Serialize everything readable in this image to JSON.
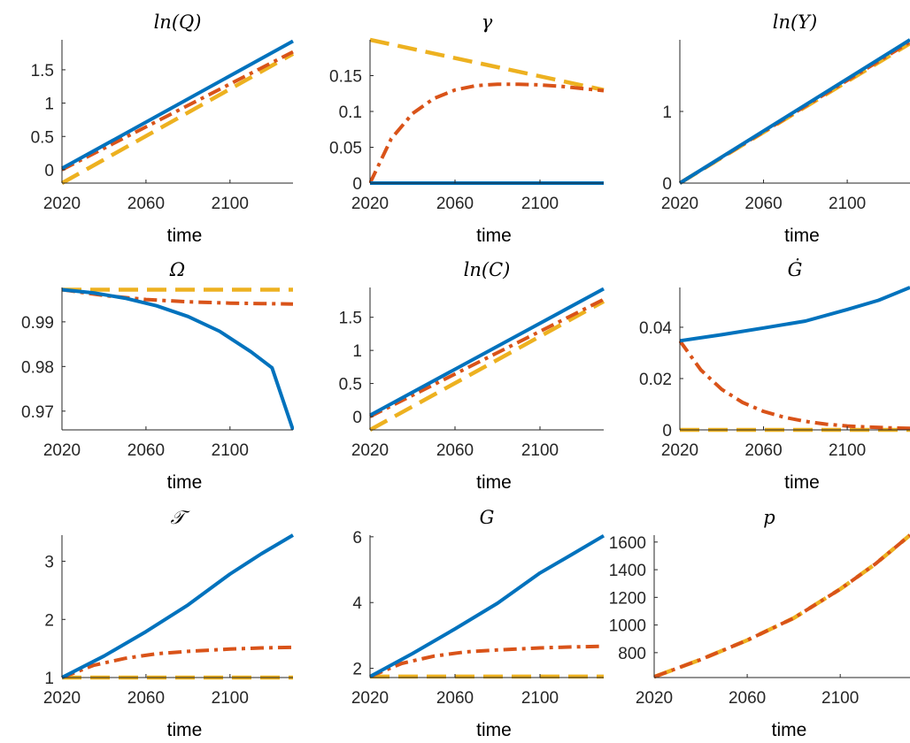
{
  "colors": {
    "blue": "#0072BD",
    "orange": "#D95319",
    "yellow": "#EDB120",
    "axis": "#262626"
  },
  "chart_data": [
    {
      "type": "line",
      "title": "ln(Q)",
      "xlabel": "time",
      "ylabel": "",
      "xlim": [
        2020,
        2130
      ],
      "ylim": [
        -0.2,
        1.95
      ],
      "xticks": [
        "2020",
        "2060",
        "2100"
      ],
      "yticks": [
        "0",
        "0.5",
        "1",
        "1.5"
      ],
      "series": [
        {
          "style": "solid",
          "color": "blue",
          "x": [
            2020,
            2130
          ],
          "y": [
            0.02,
            1.93
          ]
        },
        {
          "style": "dashdot",
          "color": "orange",
          "x": [
            2020,
            2130
          ],
          "y": [
            0.0,
            1.77
          ]
        },
        {
          "style": "dashed",
          "color": "yellow",
          "x": [
            2020,
            2130
          ],
          "y": [
            -0.2,
            1.74
          ]
        }
      ]
    },
    {
      "type": "line",
      "title": "γ",
      "xlabel": "time",
      "ylabel": "",
      "xlim": [
        2020,
        2130
      ],
      "ylim": [
        0,
        0.2
      ],
      "xticks": [
        "2020",
        "2060",
        "2100"
      ],
      "yticks": [
        "0",
        "0.05",
        "0.1",
        "0.15"
      ],
      "series": [
        {
          "style": "solid",
          "color": "blue",
          "x": [
            2020,
            2130
          ],
          "y": [
            0,
            0
          ]
        },
        {
          "style": "dashdot",
          "color": "orange",
          "x": [
            2020,
            2030,
            2040,
            2050,
            2060,
            2070,
            2080,
            2090,
            2100,
            2110,
            2120,
            2130
          ],
          "y": [
            0,
            0.062,
            0.097,
            0.118,
            0.13,
            0.136,
            0.138,
            0.138,
            0.137,
            0.135,
            0.132,
            0.129
          ]
        },
        {
          "style": "dashed",
          "color": "yellow",
          "x": [
            2020,
            2130
          ],
          "y": [
            0.2,
            0.13
          ]
        }
      ]
    },
    {
      "type": "line",
      "title": "ln(Y)",
      "xlabel": "time",
      "ylabel": "",
      "xlim": [
        2020,
        2130
      ],
      "ylim": [
        0,
        2.0
      ],
      "xticks": [
        "2020",
        "2060",
        "2100"
      ],
      "yticks": [
        "0",
        "1"
      ],
      "series": [
        {
          "style": "solid",
          "color": "blue",
          "x": [
            2020,
            2130
          ],
          "y": [
            0,
            2.0
          ]
        },
        {
          "style": "dashdot",
          "color": "orange",
          "x": [
            2020,
            2130
          ],
          "y": [
            0,
            1.97
          ]
        },
        {
          "style": "dashed",
          "color": "yellow",
          "x": [
            2020,
            2130
          ],
          "y": [
            0,
            1.95
          ]
        }
      ]
    },
    {
      "type": "line",
      "title": "Ω",
      "xlabel": "time",
      "ylabel": "",
      "xlim": [
        2020,
        2130
      ],
      "ylim": [
        0.9658,
        0.9977
      ],
      "xticks": [
        "2020",
        "2060",
        "2100"
      ],
      "yticks": [
        "0.97",
        "0.98",
        "0.99"
      ],
      "series": [
        {
          "style": "solid",
          "color": "blue",
          "x": [
            2020,
            2035,
            2050,
            2065,
            2080,
            2095,
            2110,
            2120,
            2130
          ],
          "y": [
            0.9972,
            0.9965,
            0.9953,
            0.9936,
            0.9912,
            0.9879,
            0.9833,
            0.9797,
            0.9658
          ]
        },
        {
          "style": "dashdot",
          "color": "orange",
          "x": [
            2020,
            2040,
            2060,
            2080,
            2100,
            2115,
            2130
          ],
          "y": [
            0.9972,
            0.9959,
            0.995,
            0.9945,
            0.9942,
            0.9941,
            0.994
          ]
        },
        {
          "style": "dashed",
          "color": "yellow",
          "x": [
            2020,
            2130
          ],
          "y": [
            0.9972,
            0.9972
          ]
        }
      ]
    },
    {
      "type": "line",
      "title": "ln(C)",
      "xlabel": "time",
      "ylabel": "",
      "xlim": [
        2020,
        2130
      ],
      "ylim": [
        -0.2,
        1.95
      ],
      "xticks": [
        "2020",
        "2060",
        "2100"
      ],
      "yticks": [
        "0",
        "0.5",
        "1",
        "1.5"
      ],
      "series": [
        {
          "style": "solid",
          "color": "blue",
          "x": [
            2020,
            2130
          ],
          "y": [
            0.02,
            1.93
          ]
        },
        {
          "style": "dashdot",
          "color": "orange",
          "x": [
            2020,
            2130
          ],
          "y": [
            0.0,
            1.77
          ]
        },
        {
          "style": "dashed",
          "color": "yellow",
          "x": [
            2020,
            2130
          ],
          "y": [
            -0.2,
            1.74
          ]
        }
      ]
    },
    {
      "type": "line",
      "title": "Ġ",
      "xlabel": "time",
      "ylabel": "",
      "xlim": [
        2020,
        2130
      ],
      "ylim": [
        0,
        0.0555
      ],
      "xticks": [
        "2020",
        "2060",
        "2100"
      ],
      "yticks": [
        "0",
        "0.02",
        "0.04"
      ],
      "series": [
        {
          "style": "solid",
          "color": "blue",
          "x": [
            2020,
            2040,
            2060,
            2080,
            2100,
            2115,
            2130
          ],
          "y": [
            0.0347,
            0.0371,
            0.0397,
            0.0424,
            0.0469,
            0.0505,
            0.0555
          ]
        },
        {
          "style": "dashdot",
          "color": "orange",
          "x": [
            2020,
            2030,
            2040,
            2050,
            2060,
            2070,
            2080,
            2090,
            2100,
            2110,
            2120,
            2130
          ],
          "y": [
            0.0347,
            0.0234,
            0.0158,
            0.0107,
            0.0072,
            0.0049,
            0.0033,
            0.0022,
            0.0015,
            0.0011,
            0.0008,
            0.0006
          ]
        },
        {
          "style": "dashed",
          "color": "yellow",
          "x": [
            2020,
            2130
          ],
          "y": [
            0,
            0
          ]
        }
      ]
    },
    {
      "type": "line",
      "title": "𝒯",
      "xlabel": "time",
      "ylabel": "",
      "xlim": [
        2020,
        2130
      ],
      "ylim": [
        1,
        3.45
      ],
      "xticks": [
        "2020",
        "2060",
        "2100"
      ],
      "yticks": [
        "1",
        "2",
        "3"
      ],
      "series": [
        {
          "style": "solid",
          "color": "blue",
          "x": [
            2020,
            2040,
            2060,
            2080,
            2100,
            2115,
            2130
          ],
          "y": [
            1.0,
            1.37,
            1.79,
            2.25,
            2.78,
            3.13,
            3.45
          ]
        },
        {
          "style": "dashdot",
          "color": "orange",
          "x": [
            2020,
            2035,
            2050,
            2065,
            2080,
            2100,
            2115,
            2130
          ],
          "y": [
            1.0,
            1.21,
            1.33,
            1.41,
            1.45,
            1.49,
            1.51,
            1.52
          ]
        },
        {
          "style": "dashed",
          "color": "yellow",
          "x": [
            2020,
            2130
          ],
          "y": [
            1.0,
            1.0
          ]
        }
      ]
    },
    {
      "type": "line",
      "title": "G",
      "xlabel": "time",
      "ylabel": "",
      "xlim": [
        2020,
        2130
      ],
      "ylim": [
        1.72,
        6.05
      ],
      "xticks": [
        "2020",
        "2060",
        "2100"
      ],
      "yticks": [
        "2",
        "4",
        "6"
      ],
      "series": [
        {
          "style": "solid",
          "color": "blue",
          "x": [
            2020,
            2040,
            2060,
            2080,
            2100,
            2115,
            2130
          ],
          "y": [
            1.75,
            2.45,
            3.2,
            3.98,
            4.9,
            5.46,
            6.03
          ]
        },
        {
          "style": "dashdot",
          "color": "orange",
          "x": [
            2020,
            2035,
            2050,
            2065,
            2080,
            2100,
            2115,
            2130
          ],
          "y": [
            1.75,
            2.15,
            2.37,
            2.5,
            2.56,
            2.62,
            2.65,
            2.67
          ]
        },
        {
          "style": "dashed",
          "color": "yellow",
          "x": [
            2020,
            2130
          ],
          "y": [
            1.75,
            1.75
          ]
        }
      ]
    },
    {
      "type": "line",
      "title": "p",
      "xlabel": "time",
      "ylabel": "",
      "xlim": [
        2020,
        2130
      ],
      "ylim": [
        620,
        1650
      ],
      "xticks": [
        "2020",
        "2060",
        "2100"
      ],
      "yticks": [
        "800",
        "1000",
        "1200",
        "1400",
        "1600"
      ],
      "series": [
        {
          "style": "dashdot",
          "color": "orange",
          "x": [
            2020,
            2040,
            2060,
            2080,
            2100,
            2115,
            2130
          ],
          "y": [
            625,
            750,
            890,
            1050,
            1260,
            1440,
            1650
          ]
        },
        {
          "style": "dashed",
          "color": "yellow",
          "x": [
            2020,
            2040,
            2060,
            2080,
            2100,
            2115,
            2130
          ],
          "y": [
            625,
            750,
            890,
            1050,
            1260,
            1440,
            1650
          ]
        }
      ]
    }
  ]
}
